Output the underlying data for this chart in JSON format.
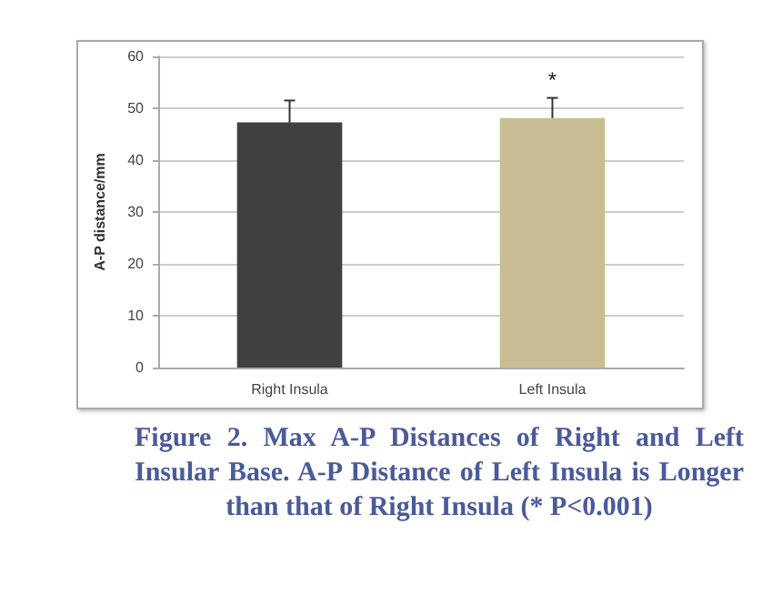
{
  "chart_data": {
    "type": "bar",
    "categories": [
      "Right Insula",
      "Left Insula"
    ],
    "series": [
      {
        "colors": [
          "#404040",
          "#c8bd93"
        ],
        "values": [
          47.3,
          48.1
        ],
        "errors": [
          4.2,
          3.9
        ]
      }
    ],
    "ylabel": "A-P distance/mm",
    "ylim": [
      0,
      60
    ],
    "yticks": [
      0,
      10,
      20,
      30,
      40,
      50,
      60
    ],
    "grid": "y",
    "annotations": [
      "*",
      "Figure 2. Max A-P Distances of Right and Left Insular Base. A-P Distance of Left Insula is Longer than that of Right Insula (* P<0.001)"
    ]
  }
}
